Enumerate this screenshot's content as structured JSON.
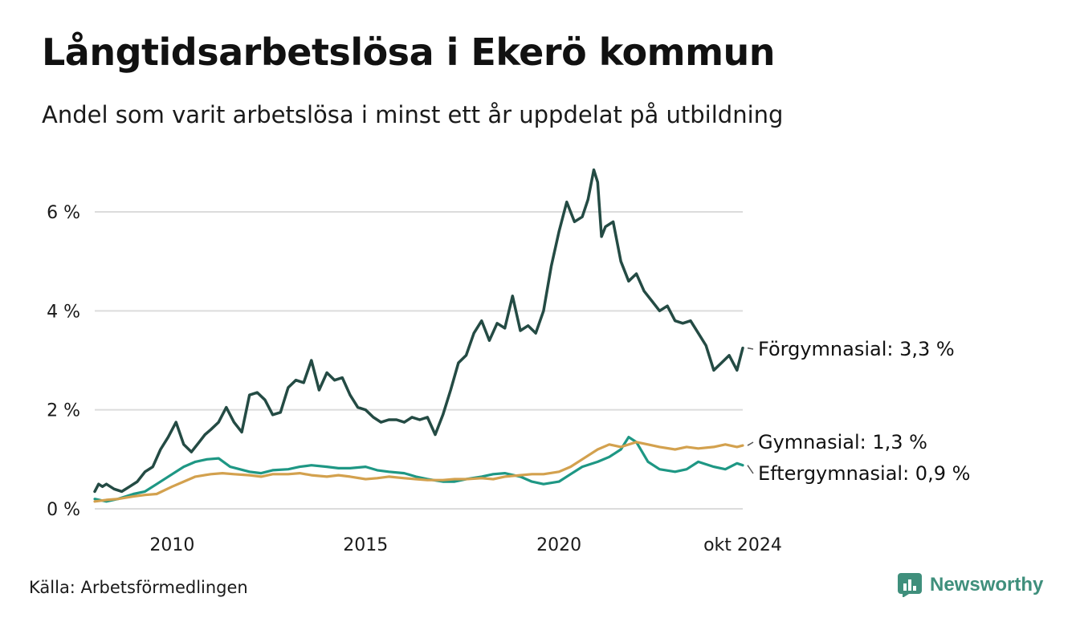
{
  "title": "Långtidsarbetslösa i Ekerö kommun",
  "subtitle": "Andel som varit arbetslösa i minst ett år uppdelat på utbildning",
  "source": "Källa: Arbetsförmedlingen",
  "brand": {
    "name": "Newsworthy",
    "icon": "newsworthy-logo-icon"
  },
  "colors": {
    "forgymnasial": "#244b44",
    "gymnasial": "#d3a14e",
    "eftergymnasial": "#1e9784",
    "grid": "#dcdcdc",
    "brand": "#3f8f7c"
  },
  "chart_data": {
    "type": "line",
    "title": "Långtidsarbetslösa i Ekerö kommun",
    "xlabel": "",
    "ylabel": "",
    "ylim": [
      0,
      7
    ],
    "xlim": [
      2008.0,
      2024.8
    ],
    "yticks": [
      0,
      2,
      4,
      6
    ],
    "ytick_labels": [
      "0 %",
      "2 %",
      "4 %",
      "6 %"
    ],
    "xticks": [
      2010,
      2015,
      2020,
      2024.75
    ],
    "xtick_labels": [
      "2010",
      "2015",
      "2020",
      "okt 2024"
    ],
    "series": [
      {
        "name": "Förgymnasial",
        "label": "Förgymnasial: 3,3 %",
        "color": "#244b44",
        "x": [
          2008.0,
          2008.1,
          2008.2,
          2008.3,
          2008.5,
          2008.7,
          2008.9,
          2009.1,
          2009.3,
          2009.5,
          2009.7,
          2009.9,
          2010.1,
          2010.3,
          2010.5,
          2010.7,
          2010.85,
          2011.0,
          2011.2,
          2011.4,
          2011.6,
          2011.8,
          2012.0,
          2012.2,
          2012.4,
          2012.6,
          2012.8,
          2013.0,
          2013.2,
          2013.4,
          2013.6,
          2013.8,
          2014.0,
          2014.2,
          2014.4,
          2014.6,
          2014.8,
          2015.0,
          2015.2,
          2015.4,
          2015.6,
          2015.8,
          2016.0,
          2016.2,
          2016.4,
          2016.6,
          2016.8,
          2017.0,
          2017.2,
          2017.4,
          2017.6,
          2017.8,
          2018.0,
          2018.2,
          2018.4,
          2018.6,
          2018.8,
          2019.0,
          2019.2,
          2019.4,
          2019.6,
          2019.8,
          2020.0,
          2020.2,
          2020.4,
          2020.6,
          2020.75,
          2020.9,
          2021.0,
          2021.1,
          2021.2,
          2021.4,
          2021.6,
          2021.8,
          2022.0,
          2022.2,
          2022.4,
          2022.6,
          2022.8,
          2023.0,
          2023.2,
          2023.4,
          2023.6,
          2023.8,
          2024.0,
          2024.2,
          2024.4,
          2024.6,
          2024.75
        ],
        "values": [
          0.35,
          0.5,
          0.45,
          0.5,
          0.4,
          0.35,
          0.45,
          0.55,
          0.75,
          0.85,
          1.2,
          1.45,
          1.75,
          1.3,
          1.15,
          1.35,
          1.5,
          1.6,
          1.75,
          2.05,
          1.75,
          1.55,
          2.3,
          2.35,
          2.2,
          1.9,
          1.95,
          2.45,
          2.6,
          2.55,
          3.0,
          2.4,
          2.75,
          2.6,
          2.65,
          2.3,
          2.05,
          2.0,
          1.85,
          1.75,
          1.8,
          1.8,
          1.75,
          1.85,
          1.8,
          1.85,
          1.5,
          1.9,
          2.4,
          2.95,
          3.1,
          3.55,
          3.8,
          3.4,
          3.75,
          3.65,
          4.3,
          3.6,
          3.7,
          3.55,
          4.0,
          4.9,
          5.6,
          6.2,
          5.8,
          5.9,
          6.25,
          6.85,
          6.6,
          5.5,
          5.7,
          5.8,
          5.0,
          4.6,
          4.75,
          4.4,
          4.2,
          4.0,
          4.1,
          3.8,
          3.75,
          3.8,
          3.55,
          3.3,
          2.8,
          2.95,
          3.1,
          2.8,
          3.25
        ]
      },
      {
        "name": "Gymnasial",
        "label": "Gymnasial: 1,3 %",
        "color": "#d3a14e",
        "x": [
          2008.0,
          2008.3,
          2008.6,
          2009.0,
          2009.3,
          2009.6,
          2010.0,
          2010.3,
          2010.6,
          2011.0,
          2011.3,
          2011.6,
          2012.0,
          2012.3,
          2012.6,
          2013.0,
          2013.3,
          2013.6,
          2014.0,
          2014.3,
          2014.6,
          2015.0,
          2015.3,
          2015.6,
          2016.0,
          2016.3,
          2016.6,
          2017.0,
          2017.3,
          2017.6,
          2018.0,
          2018.3,
          2018.6,
          2019.0,
          2019.3,
          2019.6,
          2020.0,
          2020.3,
          2020.6,
          2021.0,
          2021.3,
          2021.6,
          2022.0,
          2022.3,
          2022.6,
          2023.0,
          2023.3,
          2023.6,
          2024.0,
          2024.3,
          2024.6,
          2024.75
        ],
        "values": [
          0.15,
          0.18,
          0.2,
          0.25,
          0.28,
          0.3,
          0.45,
          0.55,
          0.65,
          0.7,
          0.72,
          0.7,
          0.68,
          0.65,
          0.7,
          0.7,
          0.72,
          0.68,
          0.65,
          0.68,
          0.65,
          0.6,
          0.62,
          0.65,
          0.62,
          0.6,
          0.58,
          0.58,
          0.6,
          0.6,
          0.62,
          0.6,
          0.65,
          0.68,
          0.7,
          0.7,
          0.75,
          0.85,
          1.0,
          1.2,
          1.3,
          1.25,
          1.35,
          1.3,
          1.25,
          1.2,
          1.25,
          1.22,
          1.25,
          1.3,
          1.25,
          1.28
        ]
      },
      {
        "name": "Eftergymnasial",
        "label": "Eftergymnasial: 0,9 %",
        "color": "#1e9784",
        "x": [
          2008.0,
          2008.3,
          2008.6,
          2009.0,
          2009.3,
          2009.6,
          2010.0,
          2010.3,
          2010.6,
          2010.9,
          2011.2,
          2011.5,
          2012.0,
          2012.3,
          2012.6,
          2013.0,
          2013.3,
          2013.6,
          2014.0,
          2014.3,
          2014.6,
          2015.0,
          2015.3,
          2015.6,
          2016.0,
          2016.3,
          2016.6,
          2017.0,
          2017.3,
          2017.6,
          2018.0,
          2018.3,
          2018.6,
          2019.0,
          2019.3,
          2019.6,
          2020.0,
          2020.3,
          2020.6,
          2021.0,
          2021.3,
          2021.6,
          2021.8,
          2022.0,
          2022.3,
          2022.6,
          2023.0,
          2023.3,
          2023.6,
          2024.0,
          2024.3,
          2024.6,
          2024.75
        ],
        "values": [
          0.2,
          0.15,
          0.2,
          0.3,
          0.35,
          0.5,
          0.7,
          0.85,
          0.95,
          1.0,
          1.02,
          0.85,
          0.75,
          0.72,
          0.78,
          0.8,
          0.85,
          0.88,
          0.85,
          0.82,
          0.82,
          0.85,
          0.78,
          0.75,
          0.72,
          0.65,
          0.6,
          0.55,
          0.55,
          0.6,
          0.65,
          0.7,
          0.72,
          0.65,
          0.55,
          0.5,
          0.55,
          0.7,
          0.85,
          0.95,
          1.05,
          1.2,
          1.45,
          1.35,
          0.95,
          0.8,
          0.75,
          0.8,
          0.95,
          0.85,
          0.8,
          0.92,
          0.88
        ]
      }
    ]
  }
}
